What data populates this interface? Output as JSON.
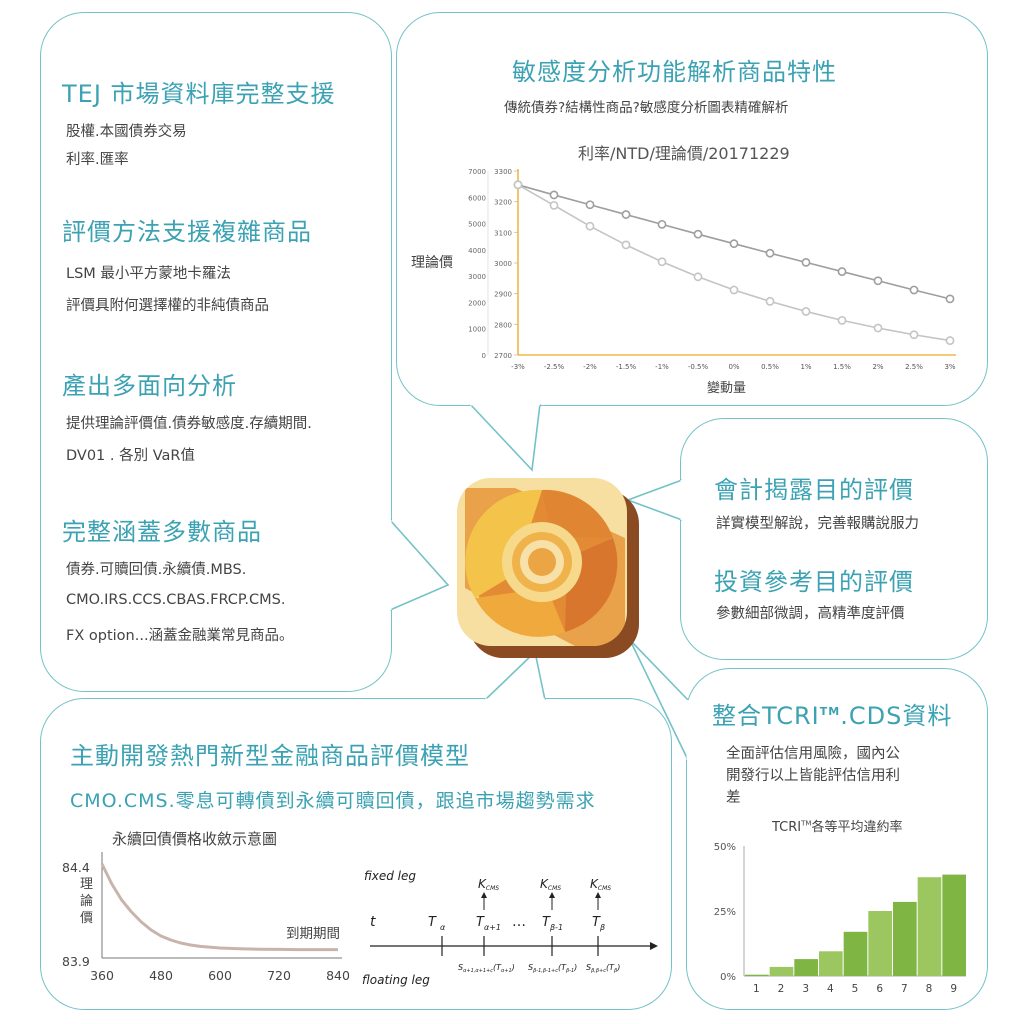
{
  "left_panel": {
    "sections": [
      {
        "title": "TEJ  市場資料庫完整支援",
        "lines": [
          "股權.本國債券交易",
          "利率.匯率"
        ]
      },
      {
        "title": "評價方法支援複雜商品",
        "lines": [
          "LSM 最小平方蒙地卡羅法",
          "評價具附何選擇權的非純債商品"
        ]
      },
      {
        "title": "產出多面向分析",
        "lines": [
          "提供理論評價值.債券敏感度.存續期間.",
          "DV01 . 各別 VaR值"
        ]
      },
      {
        "title": "完整涵蓋多數商品",
        "lines": [
          "債券.可贖回債.永續債.MBS.",
          "CMO.IRS.CCS.CBAS.FRCP.CMS.",
          "FX option...涵蓋金融業常見商品。"
        ]
      }
    ]
  },
  "top_panel": {
    "title": "敏感度分析功能解析商品特性",
    "subtitle": "傳統債券?結構性商品?敏感度分析圖表精確解析",
    "chart_title": "利率/NTD/理論價/20171229",
    "ylabel": "理論價",
    "xlabel": "變動量"
  },
  "right_top_panel": {
    "title1": "會計揭露目的評價",
    "line1": "詳實模型解說，完善報購說服力",
    "title2": "投資參考目的評價",
    "line2": "參數細部微調，高精準度評價"
  },
  "right_bottom_panel": {
    "title_pre": "整合TCRI",
    "title_tm": "TM",
    "title_post": ".CDS資料",
    "lines": [
      "全面評估信用風險，國內公",
      "開發行以上皆能評估信用利",
      "差"
    ],
    "chart_title_pre": "TCRI",
    "chart_title_tm": "TM",
    "chart_title_post": "各等平均違約率"
  },
  "bottom_panel": {
    "title": "主動開發熱門新型金融商品評價模型",
    "subtitle": "CMO.CMS.零息可轉債到永續可贖回債，跟追市場趨勢需求",
    "chart_title": "永續回債價格收斂示意圖",
    "ylabel": "理論價",
    "annotation": "到期期間"
  },
  "timeline": {
    "fixed_leg": "fixed leg",
    "floating_leg": "floating leg",
    "t": "t",
    "T_alpha": "T",
    "T_alpha_sub": "α",
    "T_a1": "T",
    "T_a1_sub": "α+1",
    "T_b1": "T",
    "T_b1_sub": "β-1",
    "T_b": "T",
    "T_b_sub": "β",
    "ellipsis": "…",
    "K": "K",
    "K_sub": "CMS",
    "S1": "S",
    "S1_sub": "α+1,α+1+c",
    "S1_arg": "(T",
    "S1_arg_sub": "α+1",
    "S2": "S",
    "S2_sub": "β-1,β-1+c",
    "S2_arg": "(T",
    "S2_arg_sub": "β-1",
    "S3": "S",
    "S3_sub": "β,β+c",
    "S3_arg": "(T",
    "S3_arg_sub": "β",
    "close": ")"
  },
  "chart_data": [
    {
      "type": "line",
      "title": "利率/NTD/理論價/20171229",
      "xlabel": "變動量",
      "ylabel": "理論價",
      "categories": [
        "-3%",
        "-2.5%",
        "-2%",
        "-1.5%",
        "-1%",
        "-0.5%",
        "0%",
        "0.5%",
        "1%",
        "1.5%",
        "2%",
        "2.5%",
        "3%"
      ],
      "left_axis_ticks": [
        "0",
        "1000",
        "2000",
        "3000",
        "4000",
        "5000",
        "6000",
        "7000"
      ],
      "right_axis_ticks": [
        "2700",
        "2800",
        "2900",
        "3000",
        "3100",
        "3200",
        "3300"
      ],
      "ylim_right": [
        2700,
        3300
      ],
      "series": [
        {
          "values": [
            3255,
            3222,
            3190,
            3158,
            3126,
            3094,
            3063,
            3032,
            3002,
            2972,
            2942,
            2912,
            2883
          ],
          "color": "#9e9e9e"
        },
        {
          "values": [
            3255,
            3188,
            3120,
            3059,
            3004,
            2955,
            2912,
            2875,
            2842,
            2813,
            2788,
            2766,
            2747
          ],
          "color": "#c4c4c4"
        }
      ]
    },
    {
      "type": "line",
      "title": "永續回債價格收斂示意圖",
      "ylabel": "理論價",
      "x_ticks": [
        "360",
        "480",
        "600",
        "720",
        "840"
      ],
      "y_ticks": [
        "84.4",
        "83.9"
      ],
      "xlim": [
        360,
        840
      ],
      "ylim": [
        83.9,
        84.4
      ],
      "series": [
        {
          "x": [
            360,
            380,
            400,
            420,
            440,
            460,
            480,
            500,
            520,
            540,
            560,
            600,
            640,
            680,
            720,
            760,
            800,
            840
          ],
          "values": [
            84.37,
            84.27,
            84.19,
            84.13,
            84.08,
            84.04,
            84.01,
            83.99,
            83.975,
            83.965,
            83.958,
            83.95,
            83.946,
            83.944,
            83.943,
            83.942,
            83.942,
            83.942
          ],
          "color": "#c9b3ad"
        }
      ]
    },
    {
      "type": "bar",
      "title": "TCRI™各等平均違約率",
      "categories": [
        "1",
        "2",
        "3",
        "4",
        "5",
        "6",
        "7",
        "8",
        "9"
      ],
      "values": [
        0.5,
        3.5,
        6.5,
        9.5,
        17,
        25,
        28.5,
        38,
        39
      ],
      "y_ticks": [
        "0%",
        "25%",
        "50%"
      ],
      "ylim": [
        0,
        50
      ],
      "colors": [
        "#7fb542",
        "#9cc65f",
        "#7fb542",
        "#9cc65f",
        "#7fb542",
        "#9cc65f",
        "#7fb542",
        "#9cc65f",
        "#7fb542"
      ]
    }
  ]
}
